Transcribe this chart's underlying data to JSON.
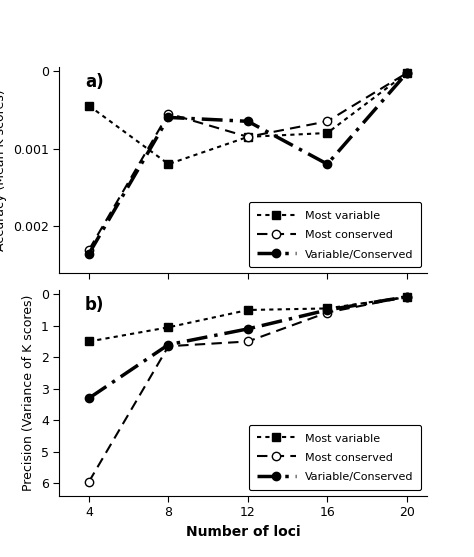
{
  "x": [
    4,
    8,
    12,
    16,
    20
  ],
  "panel_a": {
    "title": "a)",
    "ylabel": "Accuracy (Mean K scores)",
    "ylim": [
      -0.0026,
      5e-05
    ],
    "yticks": [
      0,
      -0.001,
      -0.002
    ],
    "ytick_labels": [
      "0",
      "0.001",
      "0.002"
    ],
    "most_variable": [
      -0.00045,
      -0.0012,
      -0.00085,
      -0.0008,
      -3e-05
    ],
    "most_conserved": [
      -0.0023,
      -0.00055,
      -0.00085,
      -0.00065,
      -3e-05
    ],
    "variable_conserved": [
      -0.00235,
      -0.0006,
      -0.00065,
      -0.0012,
      -3e-05
    ]
  },
  "panel_b": {
    "title": "b)",
    "ylabel": "Precision (Variance of K scores)",
    "xlabel": "Number of loci",
    "ylim": [
      6.4,
      -0.15
    ],
    "yticks": [
      0,
      1,
      2,
      3,
      4,
      5,
      6
    ],
    "ytick_labels": [
      "0",
      "1",
      "2",
      "3",
      "4",
      "5",
      "6"
    ],
    "most_variable": [
      1.5,
      1.05,
      0.5,
      0.45,
      0.08
    ],
    "most_conserved": [
      5.95,
      1.65,
      1.5,
      0.58,
      0.08
    ],
    "variable_conserved": [
      3.3,
      1.6,
      1.1,
      0.5,
      0.08
    ]
  },
  "legend_labels": [
    "Most variable",
    "Most conserved",
    "Variable/Conserved"
  ]
}
